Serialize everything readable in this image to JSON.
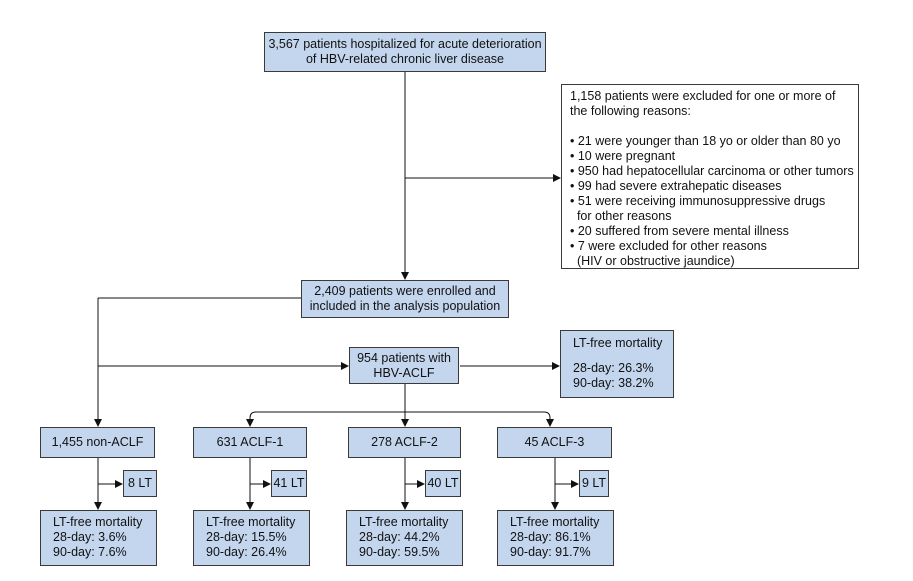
{
  "top": {
    "lines": [
      "3,567 patients hospitalized for acute deterioration",
      "of HBV-related chronic liver disease"
    ]
  },
  "excluded": {
    "intro": [
      "1,158 patients were excluded for one or more of",
      "the following reasons:"
    ],
    "reasons": [
      "• 21 were younger than 18 yo or older than 80 yo",
      "• 10 were pregnant",
      "• 950 had hepatocellular carcinoma or other tumors",
      "• 99 had severe extrahepatic diseases",
      "• 51 were receiving immunosuppressive drugs",
      "  for other reasons",
      "• 20 suffered from severe mental illness",
      "• 7 were excluded for other reasons",
      "  (HIV or obstructive jaundice)"
    ]
  },
  "enrolled": {
    "lines": [
      "2,409 patients were enrolled and",
      "included in the analysis population"
    ]
  },
  "aclf": {
    "lines": [
      "954 patients with",
      "HBV-ACLF"
    ]
  },
  "aclf_mortality": {
    "title": "LT-free mortality",
    "d28": "28-day: 26.3%",
    "d90": "90-day: 38.2%"
  },
  "groups": [
    {
      "label": "1,455 non-ACLF",
      "lt": "8 LT",
      "title": "LT-free mortality",
      "d28": "28-day: 3.6%",
      "d90": "90-day: 7.6%"
    },
    {
      "label": "631 ACLF-1",
      "lt": "41 LT",
      "title": "LT-free mortality",
      "d28": "28-day: 15.5%",
      "d90": "90-day: 26.4%"
    },
    {
      "label": "278 ACLF-2",
      "lt": "40 LT",
      "title": "LT-free mortality",
      "d28": "28-day: 44.2%",
      "d90": "90-day: 59.5%"
    },
    {
      "label": "45 ACLF-3",
      "lt": "9 LT",
      "title": "LT-free mortality",
      "d28": "28-day: 86.1%",
      "d90": "90-day: 91.7%"
    }
  ]
}
